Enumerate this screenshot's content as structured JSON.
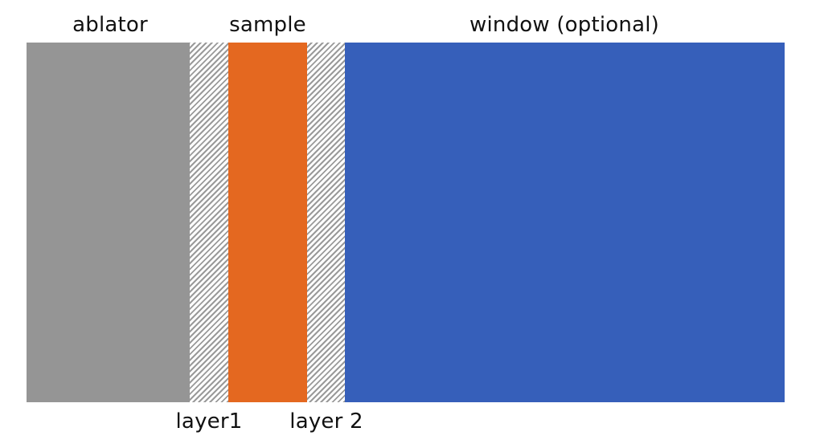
{
  "labels": {
    "ablator": "ablator",
    "sample": "sample",
    "window": "window (optional)",
    "layer1": "layer1",
    "layer2": "layer 2"
  },
  "colors": {
    "ablator": "#959595",
    "sample": "#E46820",
    "window": "#365FBA",
    "hatch_stripe": "#9A9A9A",
    "hatch_background": "#FFFFFF"
  }
}
